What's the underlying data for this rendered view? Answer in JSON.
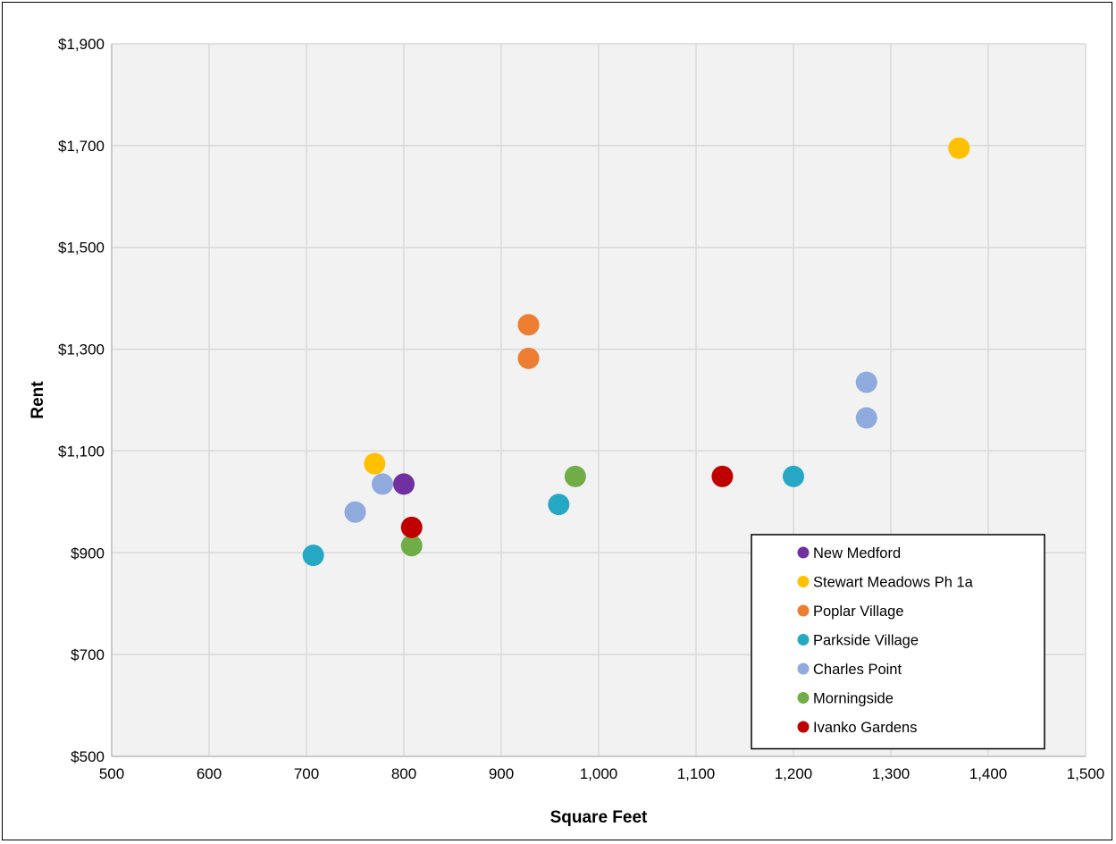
{
  "chart_data": {
    "type": "scatter",
    "title": "",
    "xlabel": "Square Feet",
    "ylabel": "Rent",
    "xlim": [
      500,
      1500
    ],
    "ylim": [
      500,
      1900
    ],
    "x_ticks": [
      500,
      600,
      700,
      800,
      900,
      1000,
      1100,
      1200,
      1300,
      1400,
      1500
    ],
    "x_tick_labels": [
      "500",
      "600",
      "700",
      "800",
      "900",
      "1,000",
      "1,100",
      "1,200",
      "1,300",
      "1,400",
      "1,500"
    ],
    "y_ticks": [
      500,
      700,
      900,
      1100,
      1300,
      1500,
      1700,
      1900
    ],
    "y_tick_labels": [
      "$500",
      "$700",
      "$900",
      "$1,100",
      "$1,300",
      "$1,500",
      "$1,700",
      "$1,900"
    ],
    "grid": true,
    "legend_position": "bottom-right",
    "series": [
      {
        "name": "New Medford",
        "color": "#7030A0",
        "points": [
          [
            800,
            1035
          ]
        ]
      },
      {
        "name": "Stewart Meadows Ph 1a",
        "color": "#FFC000",
        "points": [
          [
            770,
            1075
          ],
          [
            1370,
            1695
          ]
        ]
      },
      {
        "name": "Poplar Village",
        "color": "#ED7D31",
        "points": [
          [
            928,
            1348
          ],
          [
            928,
            1282
          ]
        ]
      },
      {
        "name": "Parkside Village",
        "color": "#26A8C4",
        "points": [
          [
            707,
            895
          ],
          [
            959,
            995
          ],
          [
            1200,
            1050
          ]
        ]
      },
      {
        "name": "Charles Point",
        "color": "#8FAADC",
        "points": [
          [
            750,
            980
          ],
          [
            778,
            1035
          ],
          [
            1275,
            1235
          ],
          [
            1275,
            1165
          ]
        ]
      },
      {
        "name": "Morningside",
        "color": "#70AD47",
        "points": [
          [
            808,
            914
          ],
          [
            976,
            1050
          ]
        ]
      },
      {
        "name": "Ivanko Gardens",
        "color": "#C00000",
        "points": [
          [
            808,
            950
          ],
          [
            1127,
            1050
          ]
        ]
      }
    ]
  }
}
